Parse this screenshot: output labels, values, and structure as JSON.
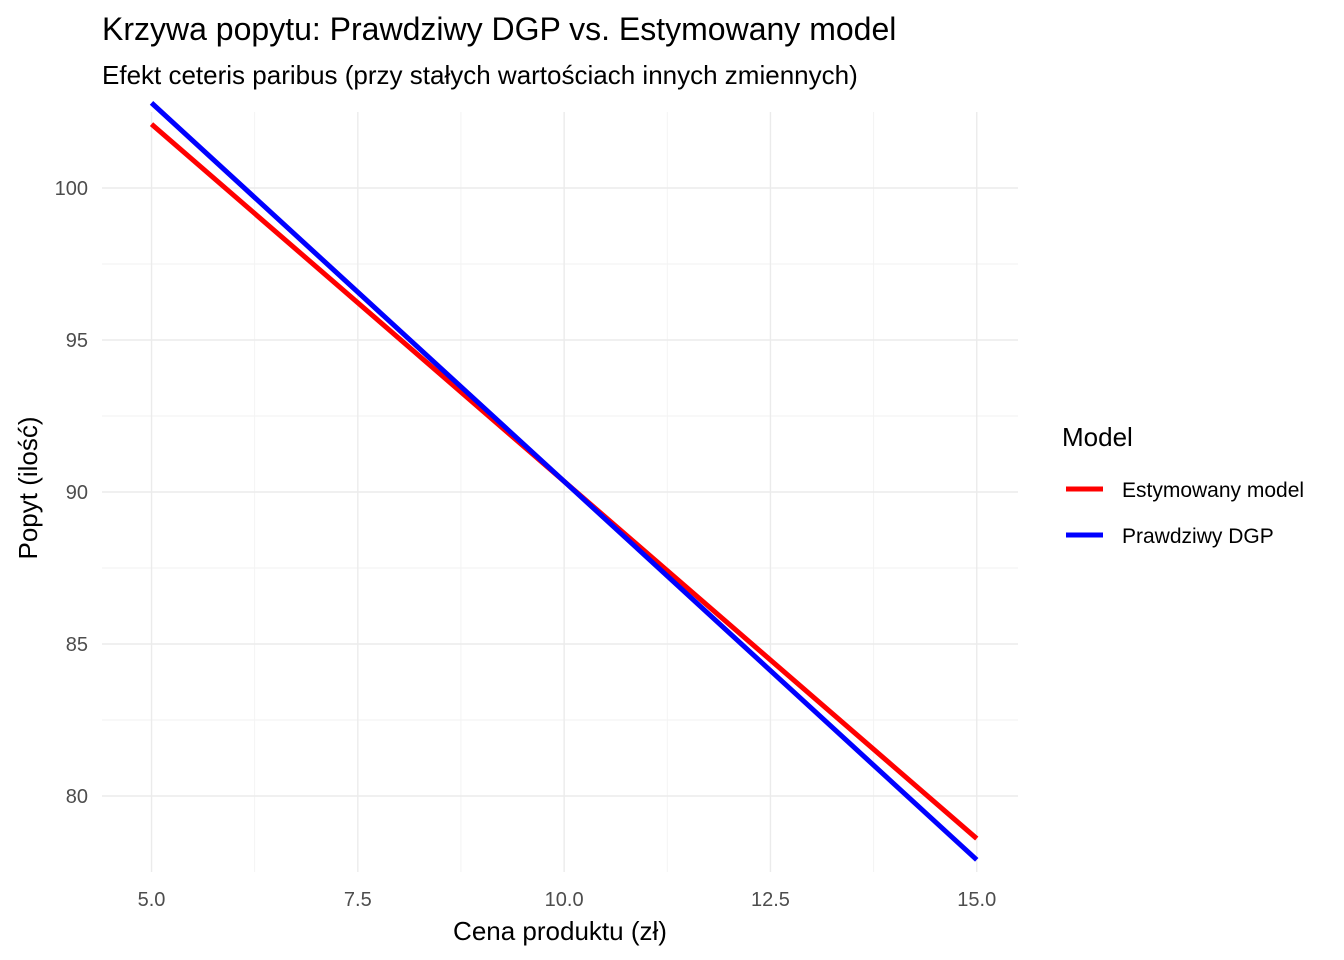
{
  "chart_data": {
    "type": "line",
    "title": "Krzywa popytu: Prawdziwy DGP vs. Estymowany model",
    "subtitle": "Efekt ceteris paribus (przy stałych wartościach innych zmiennych)",
    "xlabel": "Cena produktu (zł)",
    "ylabel": "Popyt (ilość)",
    "xlim": [
      4.4,
      15.5
    ],
    "ylim": [
      77.5,
      102.5
    ],
    "x_ticks": [
      5.0,
      7.5,
      10.0,
      12.5,
      15.0
    ],
    "x_tick_labels": [
      "5.0",
      "7.5",
      "10.0",
      "12.5",
      "15.0"
    ],
    "y_ticks": [
      80,
      85,
      90,
      95,
      100
    ],
    "y_tick_labels": [
      "80",
      "85",
      "90",
      "95",
      "100"
    ],
    "grid": true,
    "legend": {
      "title": "Model",
      "placement": "right"
    },
    "series": [
      {
        "name": "Estymowany model",
        "color": "#ff0000",
        "x": [
          5.0,
          15.0
        ],
        "y": [
          102.1,
          78.6
        ]
      },
      {
        "name": "Prawdziwy DGP",
        "color": "#0000ff",
        "x": [
          5.0,
          15.0
        ],
        "y": [
          102.8,
          77.9
        ]
      }
    ]
  }
}
